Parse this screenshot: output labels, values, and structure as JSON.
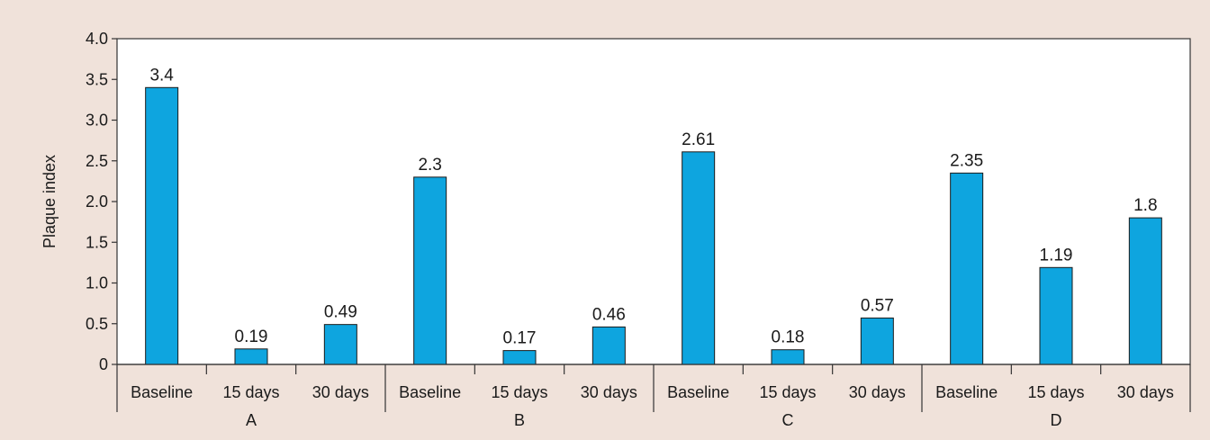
{
  "chart_data": {
    "type": "bar",
    "ylabel": "Plaque index",
    "ylim": [
      0,
      4.0
    ],
    "yticks": [
      "0",
      "0.5",
      "1.0",
      "1.5",
      "2.0",
      "2.5",
      "3.0",
      "3.5",
      "4.0"
    ],
    "yticks_values": [
      0,
      0.5,
      1.0,
      1.5,
      2.0,
      2.5,
      3.0,
      3.5,
      4.0
    ],
    "groups": [
      {
        "name": "A",
        "categories": [
          "Baseline",
          "15 days",
          "30 days"
        ],
        "values": [
          3.4,
          0.19,
          0.49
        ],
        "labels": [
          "3.4",
          "0.19",
          "0.49"
        ]
      },
      {
        "name": "B",
        "categories": [
          "Baseline",
          "15 days",
          "30 days"
        ],
        "values": [
          2.3,
          0.17,
          0.46
        ],
        "labels": [
          "2.3",
          "0.17",
          "0.46"
        ]
      },
      {
        "name": "C",
        "categories": [
          "Baseline",
          "15 days",
          "30 days"
        ],
        "values": [
          2.61,
          0.18,
          0.57
        ],
        "labels": [
          "2.61",
          "0.18",
          "0.57"
        ]
      },
      {
        "name": "D",
        "categories": [
          "Baseline",
          "15 days",
          "30 days"
        ],
        "values": [
          2.35,
          1.19,
          1.8
        ],
        "labels": [
          "2.35",
          "1.19",
          "1.8"
        ]
      }
    ],
    "grid": false,
    "legend": "none",
    "colors": {
      "bar": "#0ea5df",
      "background": "#f0e2da",
      "plot_background": "#ffffff"
    }
  }
}
